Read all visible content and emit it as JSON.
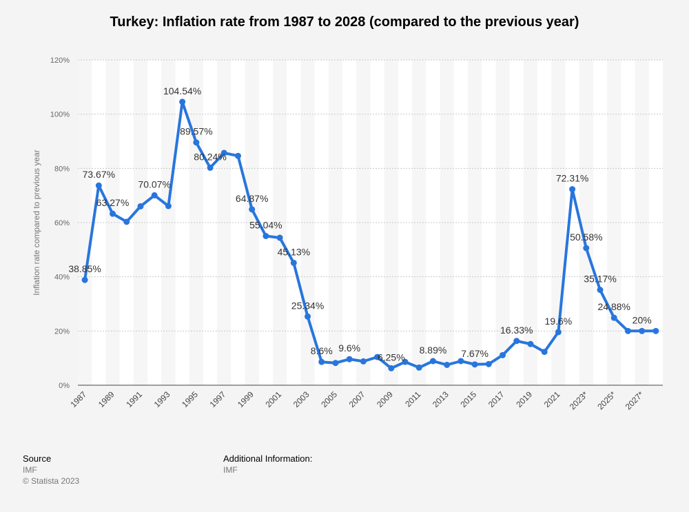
{
  "chart_data": {
    "type": "line",
    "title": "Turkey: Inflation rate from 1987 to 2028 (compared to the previous year)",
    "xlabel": "",
    "ylabel": "Inflation rate compared to previous year",
    "ylim": [
      0,
      120
    ],
    "y_ticks": [
      "0%",
      "20%",
      "40%",
      "60%",
      "80%",
      "100%",
      "120%"
    ],
    "x_tick_labels": [
      "1987",
      "1989",
      "1991",
      "1993",
      "1995",
      "1997",
      "1999",
      "2001",
      "2003",
      "2005",
      "2007",
      "2009",
      "2011",
      "2013",
      "2015",
      "2017",
      "2019",
      "2021",
      "2023*",
      "2025*",
      "2027*"
    ],
    "grid": true,
    "color": "#2876dd",
    "series": [
      {
        "x": [
          "1987",
          "1988",
          "1989",
          "1990",
          "1991",
          "1992",
          "1993",
          "1994",
          "1995",
          "1996",
          "1997",
          "1998",
          "1999",
          "2000",
          "2001",
          "2002",
          "2003",
          "2004",
          "2005",
          "2006",
          "2007",
          "2008",
          "2009",
          "2010",
          "2011",
          "2012",
          "2013",
          "2014",
          "2015",
          "2016",
          "2017",
          "2018",
          "2019",
          "2020",
          "2021",
          "2022",
          "2023*",
          "2024*",
          "2025*",
          "2026*",
          "2027*",
          "2028*"
        ],
        "values": [
          38.85,
          73.67,
          63.27,
          60.3,
          66.0,
          70.07,
          66.1,
          104.54,
          89.57,
          80.24,
          85.7,
          84.6,
          64.87,
          55.04,
          54.4,
          45.13,
          25.34,
          8.6,
          8.2,
          9.6,
          8.8,
          10.4,
          6.25,
          8.6,
          6.5,
          8.89,
          7.5,
          8.9,
          7.67,
          7.8,
          11.1,
          16.33,
          15.2,
          12.3,
          19.6,
          72.31,
          50.58,
          35.17,
          24.88,
          20.0,
          20.0,
          20.0
        ]
      }
    ],
    "data_labels": [
      {
        "index": 0,
        "text": "38.85%"
      },
      {
        "index": 1,
        "text": "73.67%"
      },
      {
        "index": 2,
        "text": "63.27%"
      },
      {
        "index": 5,
        "text": "70.07%"
      },
      {
        "index": 7,
        "text": "104.54%"
      },
      {
        "index": 8,
        "text": "89.57%"
      },
      {
        "index": 9,
        "text": "80.24%"
      },
      {
        "index": 12,
        "text": "64.87%"
      },
      {
        "index": 13,
        "text": "55.04%"
      },
      {
        "index": 15,
        "text": "45.13%"
      },
      {
        "index": 16,
        "text": "25.34%"
      },
      {
        "index": 17,
        "text": "8.6%"
      },
      {
        "index": 19,
        "text": "9.6%"
      },
      {
        "index": 22,
        "text": "6.25%"
      },
      {
        "index": 25,
        "text": "8.89%"
      },
      {
        "index": 28,
        "text": "7.67%"
      },
      {
        "index": 31,
        "text": "16.33%"
      },
      {
        "index": 34,
        "text": "19.6%"
      },
      {
        "index": 35,
        "text": "72.31%"
      },
      {
        "index": 36,
        "text": "50.58%"
      },
      {
        "index": 37,
        "text": "35.17%"
      },
      {
        "index": 38,
        "text": "24.88%"
      },
      {
        "index": 40,
        "text": "20%"
      }
    ]
  },
  "footer": {
    "source_heading": "Source",
    "source_value": "IMF",
    "copyright": "© Statista 2023",
    "additional_heading": "Additional Information:",
    "additional_value": "IMF"
  }
}
